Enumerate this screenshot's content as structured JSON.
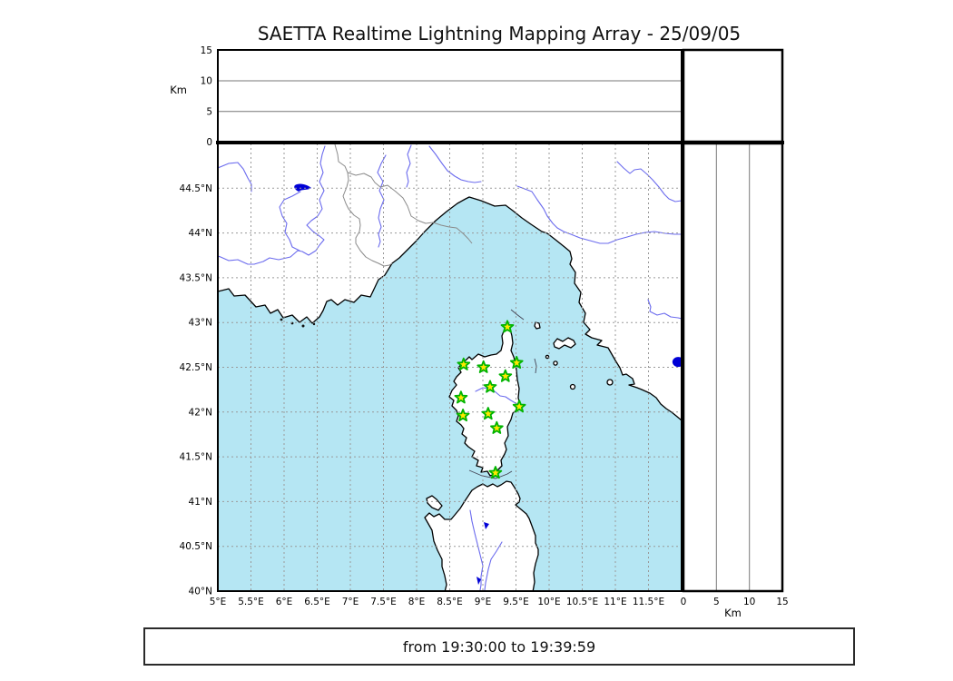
{
  "title": "SAETTA Realtime Lightning Mapping Array - 25/09/05",
  "footer": {
    "time_range": "from 19:30:00 to 19:39:59"
  },
  "chart_data": {
    "type": "scatter",
    "title": "SAETTA Realtime Lightning Mapping Array - 25/09/05",
    "subtitle": "from 19:30:00 to 19:39:59",
    "layout": "central lon/lat map with altitude cross-section panel on top (lon vs km, empty) and right (km vs lat, empty); dashed 0.5 degree grid; no legend",
    "altitude_axis": {
      "label": "Km",
      "lim": [
        0,
        15
      ],
      "ticks": [
        {
          "v": 0,
          "label": "0"
        },
        {
          "v": 5,
          "label": "5"
        },
        {
          "v": 10,
          "label": "10"
        },
        {
          "v": 15,
          "label": "15"
        }
      ],
      "gridlines": [
        5,
        10
      ]
    },
    "map": {
      "lon_lim": [
        5,
        12
      ],
      "lat_lim": [
        40,
        45
      ],
      "grid_step_deg": 0.5,
      "lon_ticks": [
        {
          "v": 5,
          "label": "5°E"
        },
        {
          "v": 5.5,
          "label": "5.5°E"
        },
        {
          "v": 6,
          "label": "6°E"
        },
        {
          "v": 6.5,
          "label": "6.5°E"
        },
        {
          "v": 7,
          "label": "7°E"
        },
        {
          "v": 7.5,
          "label": "7.5°E"
        },
        {
          "v": 8,
          "label": "8°E"
        },
        {
          "v": 8.5,
          "label": "8.5°E"
        },
        {
          "v": 9,
          "label": "9°E"
        },
        {
          "v": 9.5,
          "label": "9.5°E"
        },
        {
          "v": 10,
          "label": "10°E"
        },
        {
          "v": 10.5,
          "label": "10.5°E"
        },
        {
          "v": 11,
          "label": "11°E"
        },
        {
          "v": 11.5,
          "label": "11.5°E"
        }
      ],
      "lat_ticks": [
        {
          "v": 44.5,
          "label": "44.5°N"
        },
        {
          "v": 44,
          "label": "44°N"
        },
        {
          "v": 43.5,
          "label": "43.5°N"
        },
        {
          "v": 43,
          "label": "43°N"
        },
        {
          "v": 42.5,
          "label": "42.5°N"
        },
        {
          "v": 42,
          "label": "42°N"
        },
        {
          "v": 41.5,
          "label": "41.5°N"
        },
        {
          "v": 41,
          "label": "41°N"
        },
        {
          "v": 40.5,
          "label": "40.5°N"
        },
        {
          "v": 40,
          "label": "40°N"
        }
      ]
    },
    "series": [
      {
        "name": "lma-stations",
        "marker": "star",
        "points": [
          {
            "lon": 9.37,
            "lat": 42.95
          },
          {
            "lon": 8.71,
            "lat": 42.53
          },
          {
            "lon": 9.01,
            "lat": 42.5
          },
          {
            "lon": 9.51,
            "lat": 42.55
          },
          {
            "lon": 9.34,
            "lat": 42.4
          },
          {
            "lon": 9.11,
            "lat": 42.28
          },
          {
            "lon": 8.67,
            "lat": 42.16
          },
          {
            "lon": 9.55,
            "lat": 42.06
          },
          {
            "lon": 8.7,
            "lat": 41.96
          },
          {
            "lon": 9.08,
            "lat": 41.98
          },
          {
            "lon": 9.21,
            "lat": 41.82
          },
          {
            "lon": 9.19,
            "lat": 41.32
          }
        ]
      }
    ],
    "lakes": [
      {
        "name": "lake-bolsena",
        "lon": 11.95,
        "lat": 42.56
      }
    ]
  },
  "colors": {
    "sea": "#b5e6f3",
    "land": "#ffffff",
    "coast": "#000000",
    "river": "#6b6bee",
    "border_line": "#8a8a8a",
    "grid": "#9a9a9a",
    "lake": "#0000d6",
    "star_fill": "#ffe800",
    "star_stroke": "#00b400"
  }
}
